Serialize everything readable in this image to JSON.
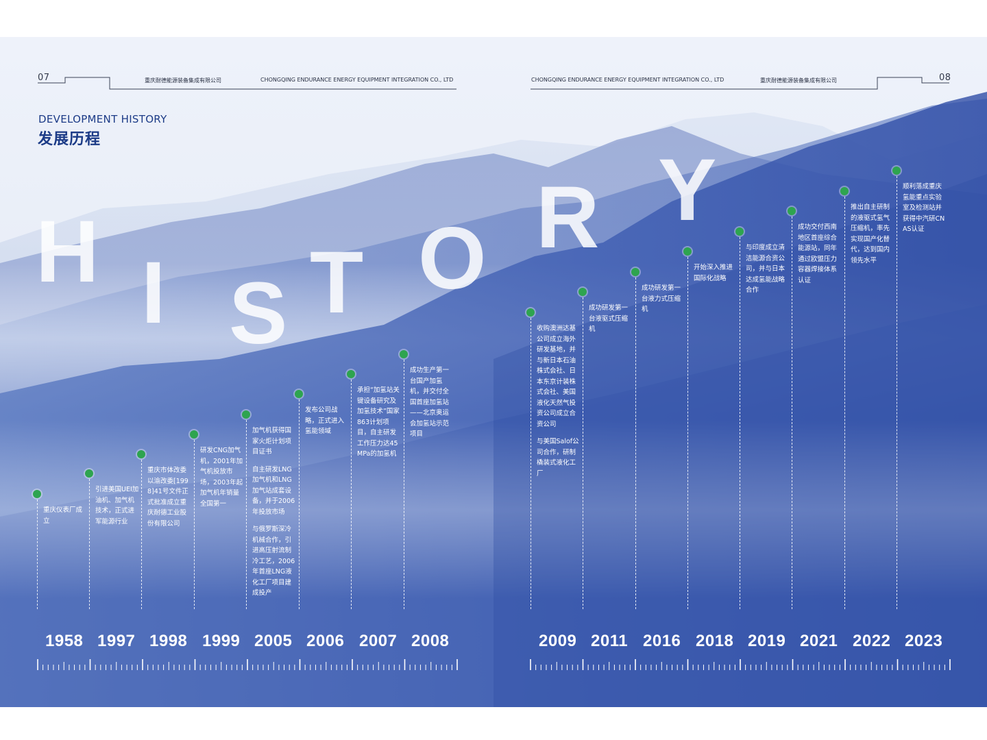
{
  "header": {
    "left_page_number": "07",
    "right_page_number": "08",
    "company_cn": "重庆耐德能源装备集成有限公司",
    "company_en": "CHONGQING ENDURANCE ENERGY EQUIPMENT INTEGRATION CO., LTD"
  },
  "title": {
    "en": "DEVELOPMENT HISTORY",
    "cn": "发展历程"
  },
  "big_word": [
    "H",
    "I",
    "S",
    "T",
    "O",
    "R",
    "Y"
  ],
  "colors": {
    "accent_blue": "#1c3b87",
    "dot_green": "#2ea44f",
    "mountain_blue": "#3a59b0"
  },
  "timeline_left": [
    {
      "year": "1958",
      "paragraphs": [
        "重庆仪表厂成立"
      ]
    },
    {
      "year": "1997",
      "paragraphs": [
        "引进美国UEI加油机、加气机技术，正式进军能源行业"
      ]
    },
    {
      "year": "1998",
      "paragraphs": [
        "重庆市体改委以渝改委[1998]41号文件正式批准成立重庆耐德工业股份有限公司"
      ]
    },
    {
      "year": "1999",
      "paragraphs": [
        "研发CNG加气机，2001年加气机投放市场，2003年起加气机年销量全国第一"
      ]
    },
    {
      "year": "2005",
      "paragraphs": [
        "加气机获得国家火炬计划项目证书",
        "自主研发LNG加气机和LNG加气站成套设备，并于2006年投放市场",
        "与俄罗斯深冷机械合作，引进高压射流制冷工艺，2006年首座LNG液化工厂项目建成投产"
      ]
    },
    {
      "year": "2006",
      "paragraphs": [
        "发布公司战略，正式进入氢能领域"
      ]
    },
    {
      "year": "2007",
      "paragraphs": [
        "承担“加氢站关键设备研究及加氢技术”国家863计划项目，自主研发工作压力达45MPa的加氢机"
      ]
    },
    {
      "year": "2008",
      "paragraphs": [
        "成功生产第一台国产加氢机，并交付全国首座加氢站——北京奥运会加氢站示范项目"
      ]
    }
  ],
  "timeline_right": [
    {
      "year": "2009",
      "paragraphs": [
        "收购澳洲达基公司成立海外研发基地，并与新日本石油株式会社、日本东京计装株式会社、美国液化天然气投资公司成立合资公司",
        "与美国Salof公司合作，研制橇装式液化工厂"
      ]
    },
    {
      "year": "2011",
      "paragraphs": [
        "成功研发第一台液驱式压缩机"
      ]
    },
    {
      "year": "2016",
      "paragraphs": [
        "成功研发第一台液力式压缩机"
      ]
    },
    {
      "year": "2018",
      "paragraphs": [
        "开始深入推进国际化战略"
      ]
    },
    {
      "year": "2019",
      "paragraphs": [
        "与印度成立清洁能源合资公司，并与日本达成氢能战略合作"
      ]
    },
    {
      "year": "2021",
      "paragraphs": [
        "成功交付西南地区首座综合能源站，同年通过欧盟压力容器焊接体系认证"
      ]
    },
    {
      "year": "2022",
      "paragraphs": [
        "推出自主研制的液驱式氢气压缩机，率先实现国产化替代，达到国内领先水平"
      ]
    },
    {
      "year": "2023",
      "paragraphs": [
        "顺利落成重庆氢能重点实验室及检测站并获得中汽研CNAS认证"
      ]
    }
  ]
}
